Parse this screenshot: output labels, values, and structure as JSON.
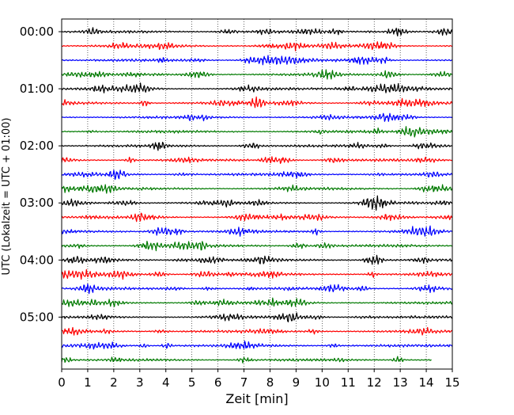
{
  "chart_data": {
    "type": "line",
    "title": "",
    "xlabel": "Zeit  [min]",
    "ylabel": "UTC (Lokalzeit = UTC + 01:00)",
    "xlim": [
      0,
      15
    ],
    "x_ticks": [
      "0",
      "1",
      "2",
      "3",
      "4",
      "5",
      "6",
      "7",
      "8",
      "9",
      "10",
      "11",
      "12",
      "13",
      "14",
      "15"
    ],
    "y_tick_labels": [
      "00:00",
      "01:00",
      "02:00",
      "03:00",
      "04:00",
      "05:00"
    ],
    "trace_interval_minutes": 15,
    "trace_colors": [
      "#000000",
      "#ff0000",
      "#0000ff",
      "#007a00"
    ],
    "last_trace_end_minutes": 14.2,
    "grid": "vertical dotted lines at each minute",
    "series": [
      {
        "start": "00:00",
        "color_index": 0,
        "amplitude": 0.25
      },
      {
        "start": "00:15",
        "color_index": 1,
        "amplitude": 0.26
      },
      {
        "start": "00:30",
        "color_index": 2,
        "amplitude": 0.26
      },
      {
        "start": "00:45",
        "color_index": 3,
        "amplitude": 0.24
      },
      {
        "start": "01:00",
        "color_index": 0,
        "amplitude": 0.25
      },
      {
        "start": "01:15",
        "color_index": 1,
        "amplitude": 0.26
      },
      {
        "start": "01:30",
        "color_index": 2,
        "amplitude": 0.25
      },
      {
        "start": "01:45",
        "color_index": 3,
        "amplitude": 0.25
      },
      {
        "start": "02:00",
        "color_index": 0,
        "amplitude": 0.24
      },
      {
        "start": "02:15",
        "color_index": 1,
        "amplitude": 0.25
      },
      {
        "start": "02:30",
        "color_index": 2,
        "amplitude": 0.26
      },
      {
        "start": "02:45",
        "color_index": 3,
        "amplitude": 0.24
      },
      {
        "start": "03:00",
        "color_index": 0,
        "amplitude": 0.25
      },
      {
        "start": "03:15",
        "color_index": 1,
        "amplitude": 0.26
      },
      {
        "start": "03:30",
        "color_index": 2,
        "amplitude": 0.26
      },
      {
        "start": "03:45",
        "color_index": 3,
        "amplitude": 0.25
      },
      {
        "start": "04:00",
        "color_index": 0,
        "amplitude": 0.25
      },
      {
        "start": "04:15",
        "color_index": 1,
        "amplitude": 0.26
      },
      {
        "start": "04:30",
        "color_index": 2,
        "amplitude": 0.26
      },
      {
        "start": "04:45",
        "color_index": 3,
        "amplitude": 0.25
      },
      {
        "start": "05:00",
        "color_index": 0,
        "amplitude": 0.25
      },
      {
        "start": "05:15",
        "color_index": 1,
        "amplitude": 0.26
      },
      {
        "start": "05:30",
        "color_index": 2,
        "amplitude": 0.27
      },
      {
        "start": "05:45",
        "color_index": 3,
        "amplitude": 0.25
      }
    ]
  }
}
